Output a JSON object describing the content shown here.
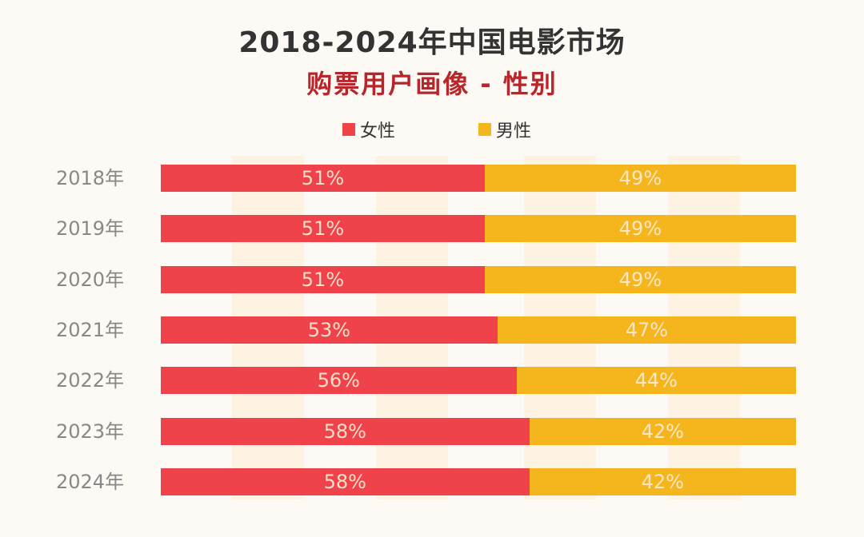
{
  "chart_data": {
    "type": "bar",
    "orientation": "horizontal",
    "stacked": true,
    "normalized": true,
    "title": "2018-2024年中国电影市场",
    "subtitle": "购票用户画像 - 性别",
    "categories": [
      "2018年",
      "2019年",
      "2020年",
      "2021年",
      "2022年",
      "2023年",
      "2024年"
    ],
    "series": [
      {
        "name": "女性",
        "color": "#f0424a",
        "values": [
          51,
          51,
          51,
          53,
          56,
          58,
          58
        ],
        "labels": [
          "51%",
          "51%",
          "51%",
          "53%",
          "56%",
          "58%",
          "58%"
        ]
      },
      {
        "name": "男性",
        "color": "#f5b51c",
        "values": [
          49,
          49,
          49,
          47,
          44,
          42,
          42
        ],
        "labels": [
          "49%",
          "49%",
          "49%",
          "47%",
          "44%",
          "42%",
          "42%"
        ]
      }
    ],
    "xlim": [
      0,
      100
    ],
    "unit": "%",
    "legend_position": "top-center",
    "grid": false
  }
}
